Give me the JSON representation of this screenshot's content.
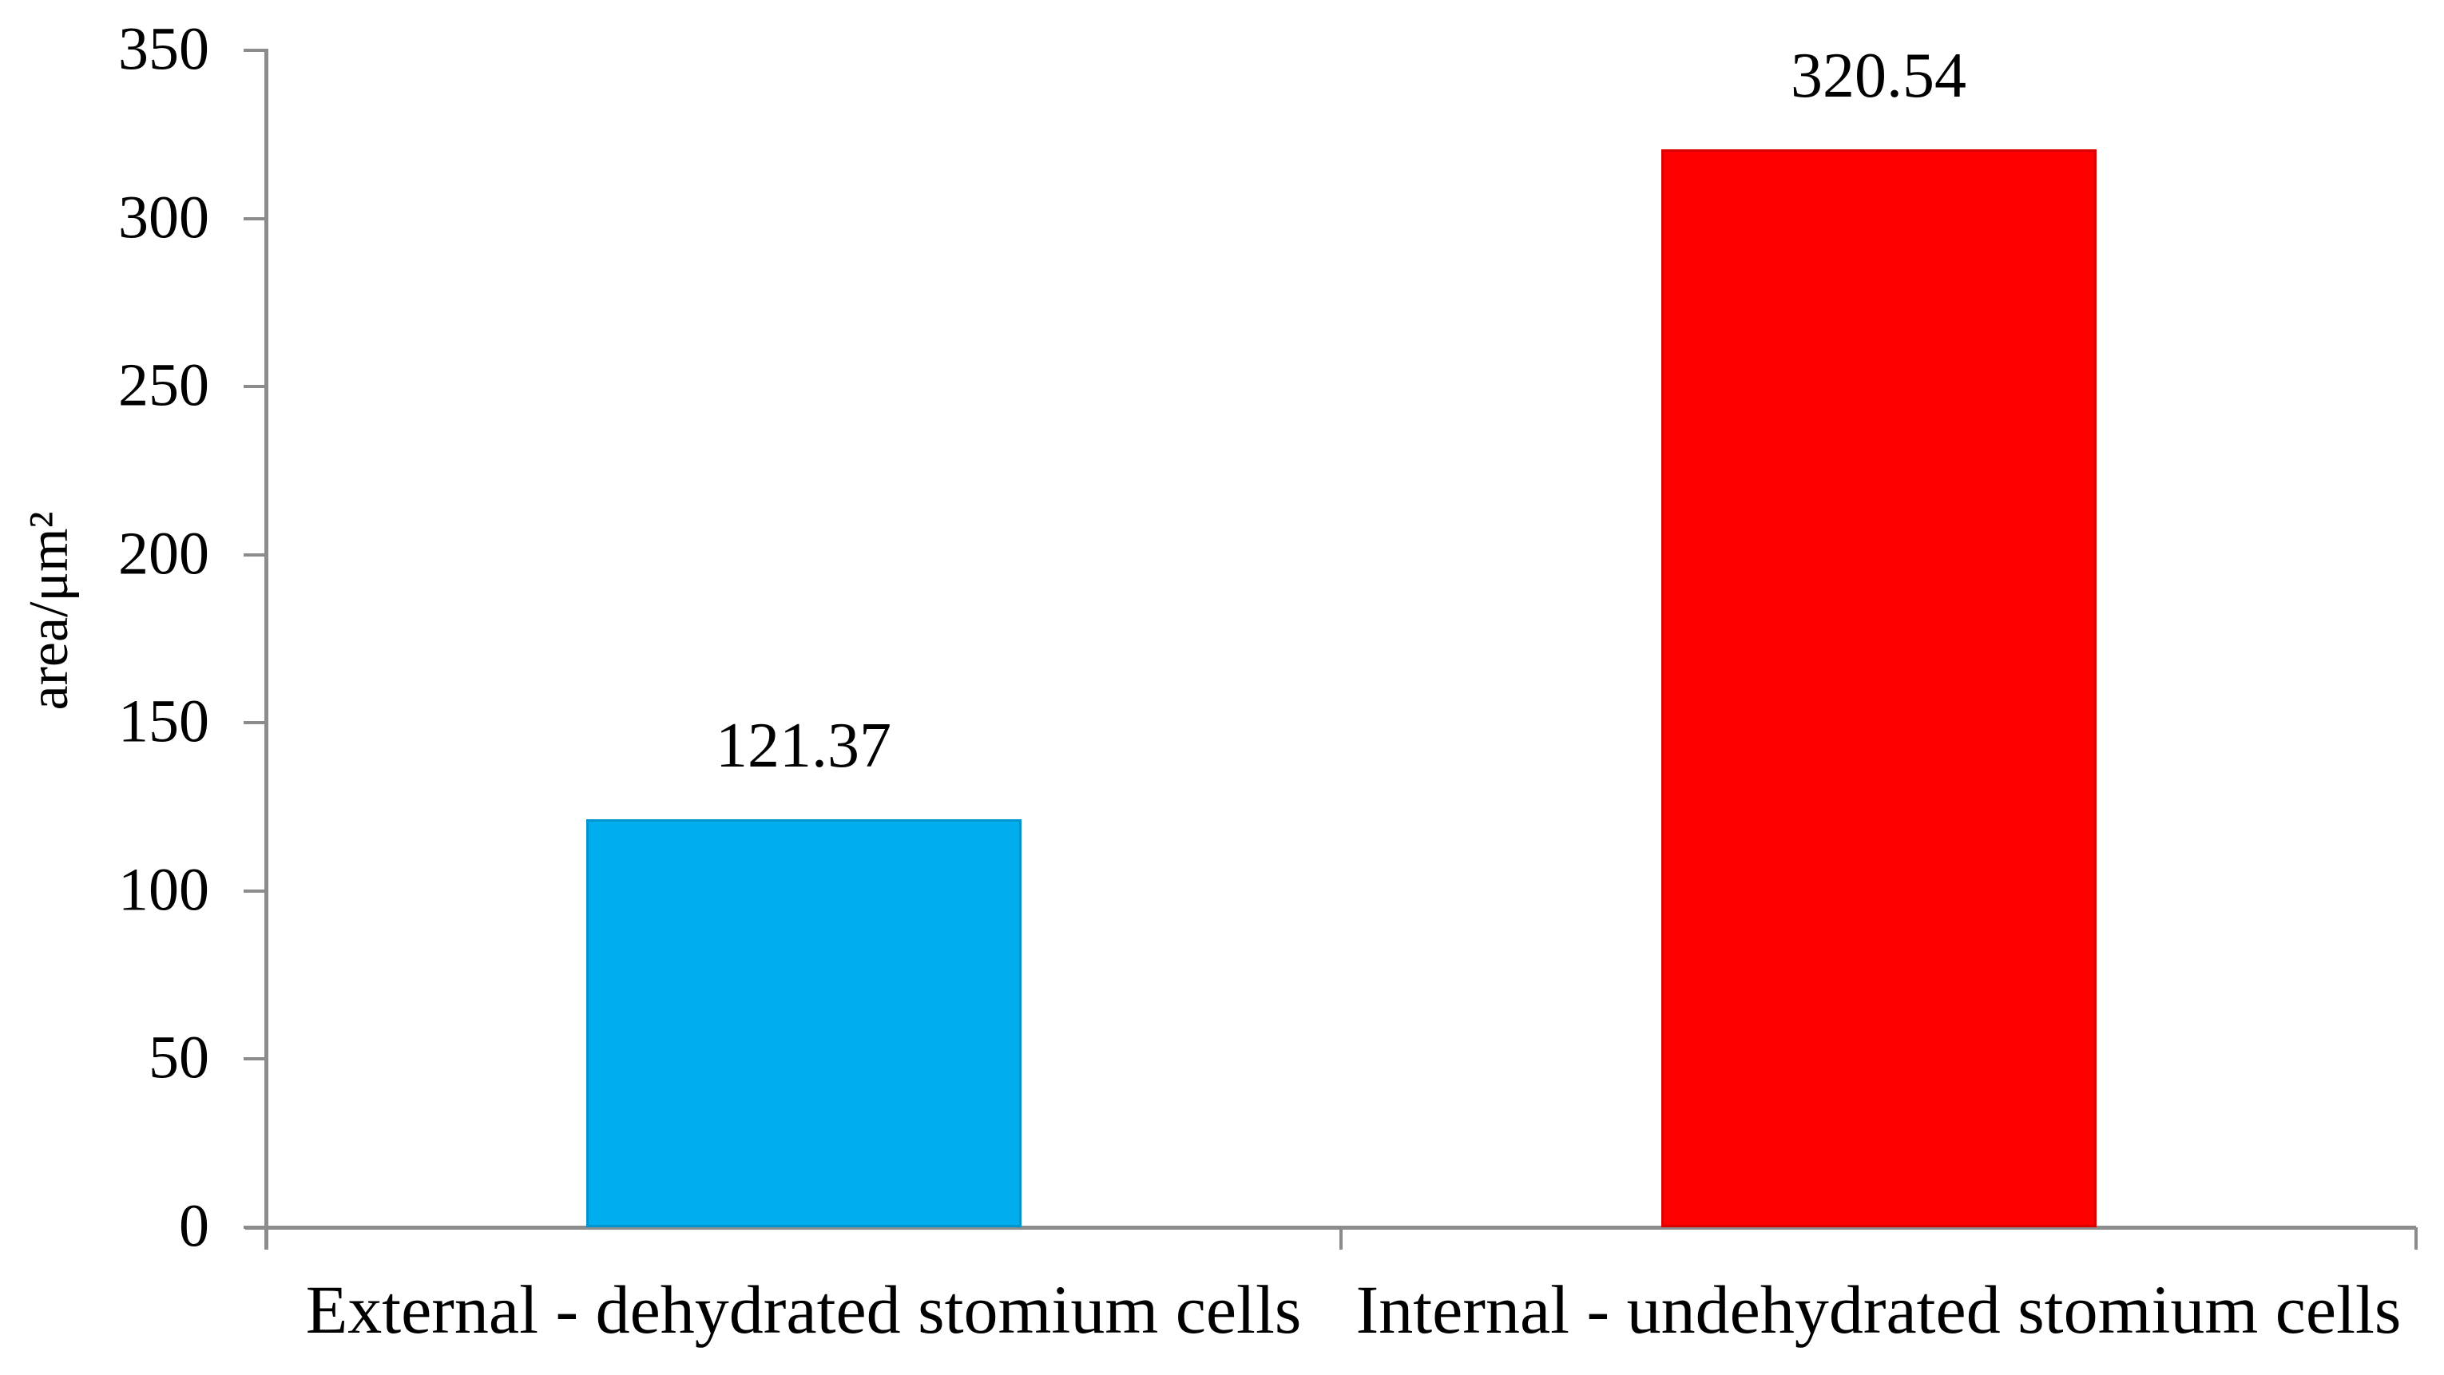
{
  "chart_data": {
    "type": "bar",
    "title": "",
    "categories": [
      "External - dehydrated stomium cells",
      "Internal - undehydrated stomium cells"
    ],
    "values": [
      121.37,
      320.54
    ],
    "value_labels": [
      "121.37",
      "320.54"
    ],
    "bar_colors": [
      "#00aeef",
      "#fe0000"
    ],
    "xlabel": "",
    "ylabel": "area/μm²",
    "ylim": [
      0,
      350
    ],
    "ytick_interval": 50,
    "yticks": [
      "0",
      "50",
      "100",
      "150",
      "200",
      "250",
      "300",
      "350"
    ],
    "grid": false,
    "legend": false,
    "axis_color": "#8c8c8c",
    "text_color": "#000000",
    "background": "#ffffff"
  }
}
